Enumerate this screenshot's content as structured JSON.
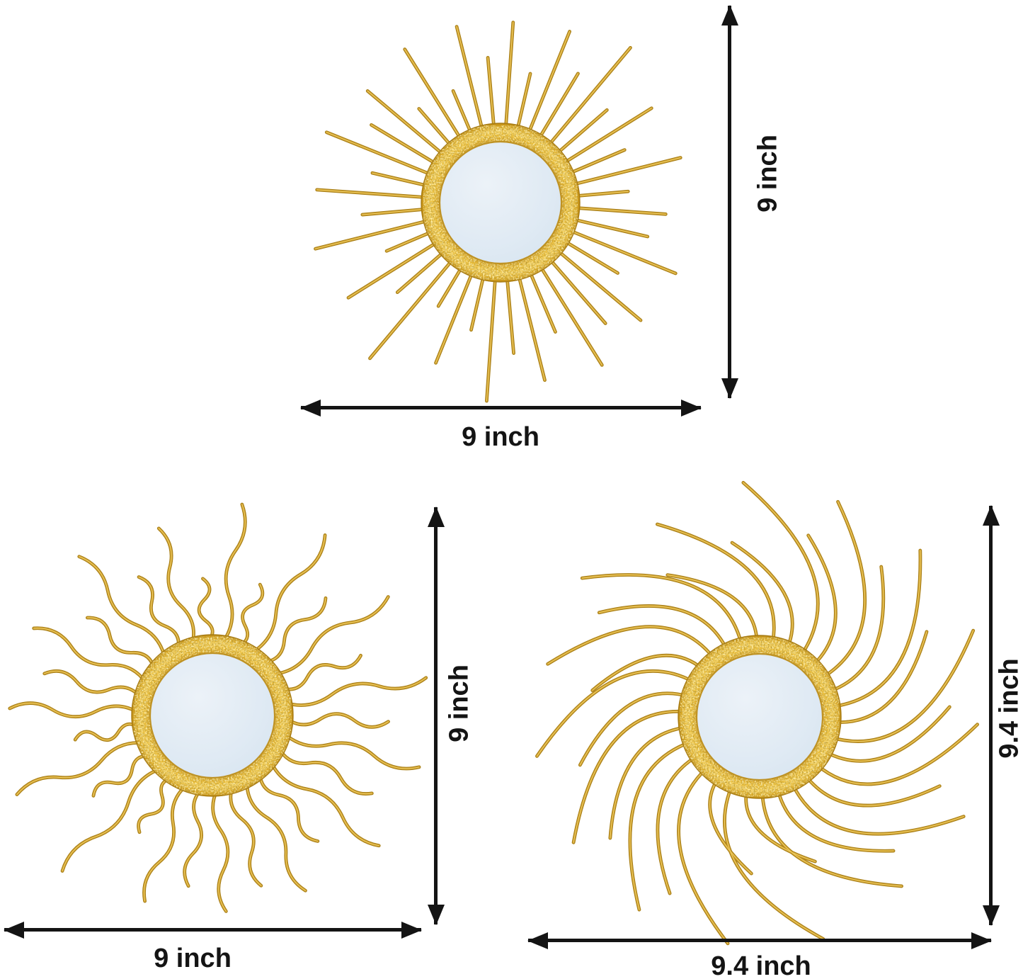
{
  "image": {
    "description": "Set of 3 gold sunburst wall mirrors with size dimension arrows",
    "background": "#ffffff",
    "dimension_color": "#141414",
    "mirrors": [
      {
        "name": "sunburst mirror with straight rays",
        "ray_style": "straight",
        "ray_count": 40,
        "width_label": "9 inch",
        "height_label": "9 inch"
      },
      {
        "name": "sun mirror with wavy rays",
        "ray_style": "wavy",
        "ray_count": 30,
        "width_label": "9 inch",
        "height_label": "9 inch"
      },
      {
        "name": "sun mirror with curved swirl rays",
        "ray_style": "swirl",
        "ray_count": 30,
        "width_label": "9.4 inch",
        "height_label": "9.4 inch"
      }
    ],
    "colors": {
      "ray_gold": "#C9992B",
      "ray_gold_highlight": "#EDCB5F",
      "ray_gold_dark": "#A9811A",
      "ring_gold": "#EDBE37",
      "ring_gold_bright": "#F2CC55",
      "mirror_glass": "#DEE9F3"
    }
  }
}
